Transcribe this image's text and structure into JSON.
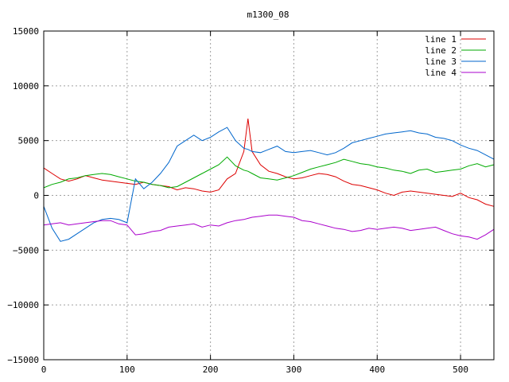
{
  "chart_data": {
    "type": "line",
    "title": "m1300_08",
    "xlabel": "",
    "ylabel": "",
    "xlim": [
      0,
      540
    ],
    "ylim": [
      -15000,
      15000
    ],
    "xticks": [
      0,
      100,
      200,
      300,
      400,
      500
    ],
    "yticks": [
      -15000,
      -10000,
      -5000,
      0,
      5000,
      10000,
      15000
    ],
    "xtick_labels": [
      "0",
      "100",
      "200",
      "300",
      "400",
      "500"
    ],
    "ytick_labels": [
      "−15000",
      "−10000",
      "−5000",
      "0",
      "5000",
      "10000",
      "15000"
    ],
    "grid": true,
    "legend_position": "top-right",
    "x": [
      0,
      10,
      20,
      30,
      40,
      50,
      60,
      70,
      80,
      90,
      100,
      110,
      120,
      130,
      140,
      150,
      160,
      170,
      180,
      190,
      200,
      210,
      220,
      230,
      240,
      245,
      250,
      260,
      270,
      280,
      290,
      300,
      310,
      320,
      330,
      340,
      350,
      360,
      370,
      380,
      390,
      400,
      410,
      420,
      430,
      440,
      450,
      460,
      470,
      480,
      490,
      500,
      510,
      520,
      530,
      540
    ],
    "series": [
      {
        "name": "line 1",
        "color": "#dd0000",
        "values": [
          2500,
          2000,
          1500,
          1300,
          1500,
          1800,
          1600,
          1400,
          1300,
          1200,
          1100,
          1000,
          1200,
          1000,
          900,
          800,
          500,
          700,
          600,
          400,
          300,
          500,
          1500,
          2000,
          4000,
          7000,
          4000,
          2800,
          2200,
          2000,
          1700,
          1500,
          1600,
          1800,
          2000,
          1900,
          1700,
          1300,
          1000,
          900,
          700,
          500,
          200,
          0,
          300,
          400,
          300,
          200,
          100,
          0,
          -100,
          200,
          -200,
          -400,
          -800,
          -1000
        ]
      },
      {
        "name": "line 2",
        "color": "#00aa00",
        "values": [
          700,
          1000,
          1200,
          1500,
          1600,
          1800,
          1900,
          2000,
          1900,
          1700,
          1500,
          1300,
          1200,
          1000,
          900,
          700,
          800,
          1200,
          1600,
          2000,
          2400,
          2800,
          3500,
          2700,
          2300,
          2200,
          2000,
          1600,
          1500,
          1400,
          1600,
          1800,
          2100,
          2400,
          2600,
          2800,
          3000,
          3300,
          3100,
          2900,
          2800,
          2600,
          2500,
          2300,
          2200,
          2000,
          2300,
          2400,
          2100,
          2200,
          2300,
          2400,
          2700,
          2900,
          2600,
          2800
        ]
      },
      {
        "name": "line 3",
        "color": "#0066cc",
        "values": [
          -1000,
          -3000,
          -4200,
          -4000,
          -3500,
          -3000,
          -2500,
          -2200,
          -2100,
          -2200,
          -2500,
          1500,
          600,
          1200,
          2000,
          3000,
          4500,
          5000,
          5500,
          5000,
          5300,
          5800,
          6200,
          5000,
          4300,
          4200,
          4000,
          3900,
          4200,
          4500,
          4000,
          3900,
          4000,
          4100,
          3900,
          3700,
          3900,
          4300,
          4800,
          5000,
          5200,
          5400,
          5600,
          5700,
          5800,
          5900,
          5700,
          5600,
          5300,
          5200,
          5000,
          4600,
          4300,
          4100,
          3700,
          3300
        ]
      },
      {
        "name": "line 4",
        "color": "#aa00cc",
        "values": [
          -2700,
          -2600,
          -2500,
          -2700,
          -2600,
          -2500,
          -2400,
          -2300,
          -2300,
          -2600,
          -2700,
          -3600,
          -3500,
          -3300,
          -3200,
          -2900,
          -2800,
          -2700,
          -2600,
          -2900,
          -2700,
          -2800,
          -2500,
          -2300,
          -2200,
          -2100,
          -2000,
          -1900,
          -1800,
          -1800,
          -1900,
          -2000,
          -2300,
          -2400,
          -2600,
          -2800,
          -3000,
          -3100,
          -3300,
          -3200,
          -3000,
          -3100,
          -3000,
          -2900,
          -3000,
          -3200,
          -3100,
          -3000,
          -2900,
          -3200,
          -3500,
          -3700,
          -3800,
          -4000,
          -3600,
          -3100
        ]
      }
    ]
  }
}
